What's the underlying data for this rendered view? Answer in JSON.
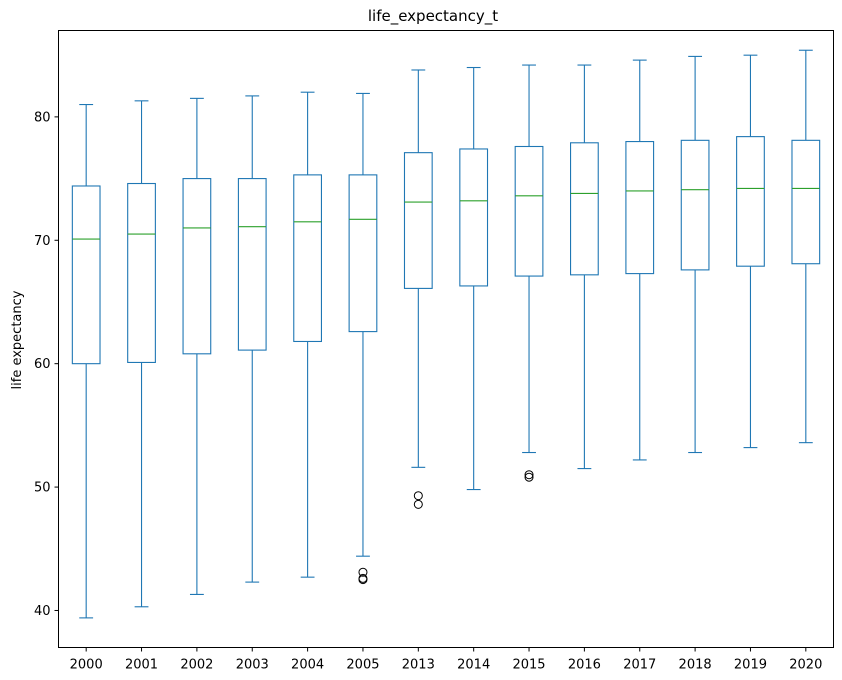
{
  "chart_data": {
    "type": "box",
    "title": "life_expectancy_t",
    "xlabel": "",
    "ylabel": "life expectancy",
    "ylim": [
      37,
      87
    ],
    "yticks": [
      40,
      50,
      60,
      70,
      80
    ],
    "grid": false,
    "colors": {
      "box": "#1f77b4",
      "median": "#2ca02c",
      "flier": "#000000"
    },
    "categories": [
      "2000",
      "2001",
      "2002",
      "2003",
      "2004",
      "2005",
      "2013",
      "2014",
      "2015",
      "2016",
      "2017",
      "2018",
      "2019",
      "2020"
    ],
    "boxes": [
      {
        "whisker_low": 39.4,
        "q1": 60.0,
        "median": 70.1,
        "q3": 74.4,
        "whisker_high": 81.0,
        "fliers": []
      },
      {
        "whisker_low": 40.3,
        "q1": 60.1,
        "median": 70.5,
        "q3": 74.6,
        "whisker_high": 81.3,
        "fliers": []
      },
      {
        "whisker_low": 41.3,
        "q1": 60.8,
        "median": 71.0,
        "q3": 75.0,
        "whisker_high": 81.5,
        "fliers": []
      },
      {
        "whisker_low": 42.3,
        "q1": 61.1,
        "median": 71.1,
        "q3": 75.0,
        "whisker_high": 81.7,
        "fliers": []
      },
      {
        "whisker_low": 42.7,
        "q1": 61.8,
        "median": 71.5,
        "q3": 75.3,
        "whisker_high": 82.0,
        "fliers": []
      },
      {
        "whisker_low": 44.4,
        "q1": 62.6,
        "median": 71.7,
        "q3": 75.3,
        "whisker_high": 81.9,
        "fliers": [
          43.1,
          42.6,
          42.5
        ]
      },
      {
        "whisker_low": 51.6,
        "q1": 66.1,
        "median": 73.1,
        "q3": 77.1,
        "whisker_high": 83.8,
        "fliers": [
          49.3,
          48.6
        ]
      },
      {
        "whisker_low": 49.8,
        "q1": 66.3,
        "median": 73.2,
        "q3": 77.4,
        "whisker_high": 84.0,
        "fliers": []
      },
      {
        "whisker_low": 52.8,
        "q1": 67.1,
        "median": 73.6,
        "q3": 77.6,
        "whisker_high": 84.2,
        "fliers": [
          51.0,
          50.8
        ]
      },
      {
        "whisker_low": 51.5,
        "q1": 67.2,
        "median": 73.8,
        "q3": 77.9,
        "whisker_high": 84.2,
        "fliers": []
      },
      {
        "whisker_low": 52.2,
        "q1": 67.3,
        "median": 74.0,
        "q3": 78.0,
        "whisker_high": 84.6,
        "fliers": []
      },
      {
        "whisker_low": 52.8,
        "q1": 67.6,
        "median": 74.1,
        "q3": 78.1,
        "whisker_high": 84.9,
        "fliers": []
      },
      {
        "whisker_low": 53.2,
        "q1": 67.9,
        "median": 74.2,
        "q3": 78.4,
        "whisker_high": 85.0,
        "fliers": []
      },
      {
        "whisker_low": 53.6,
        "q1": 68.1,
        "median": 74.2,
        "q3": 78.1,
        "whisker_high": 85.4,
        "fliers": []
      }
    ]
  }
}
